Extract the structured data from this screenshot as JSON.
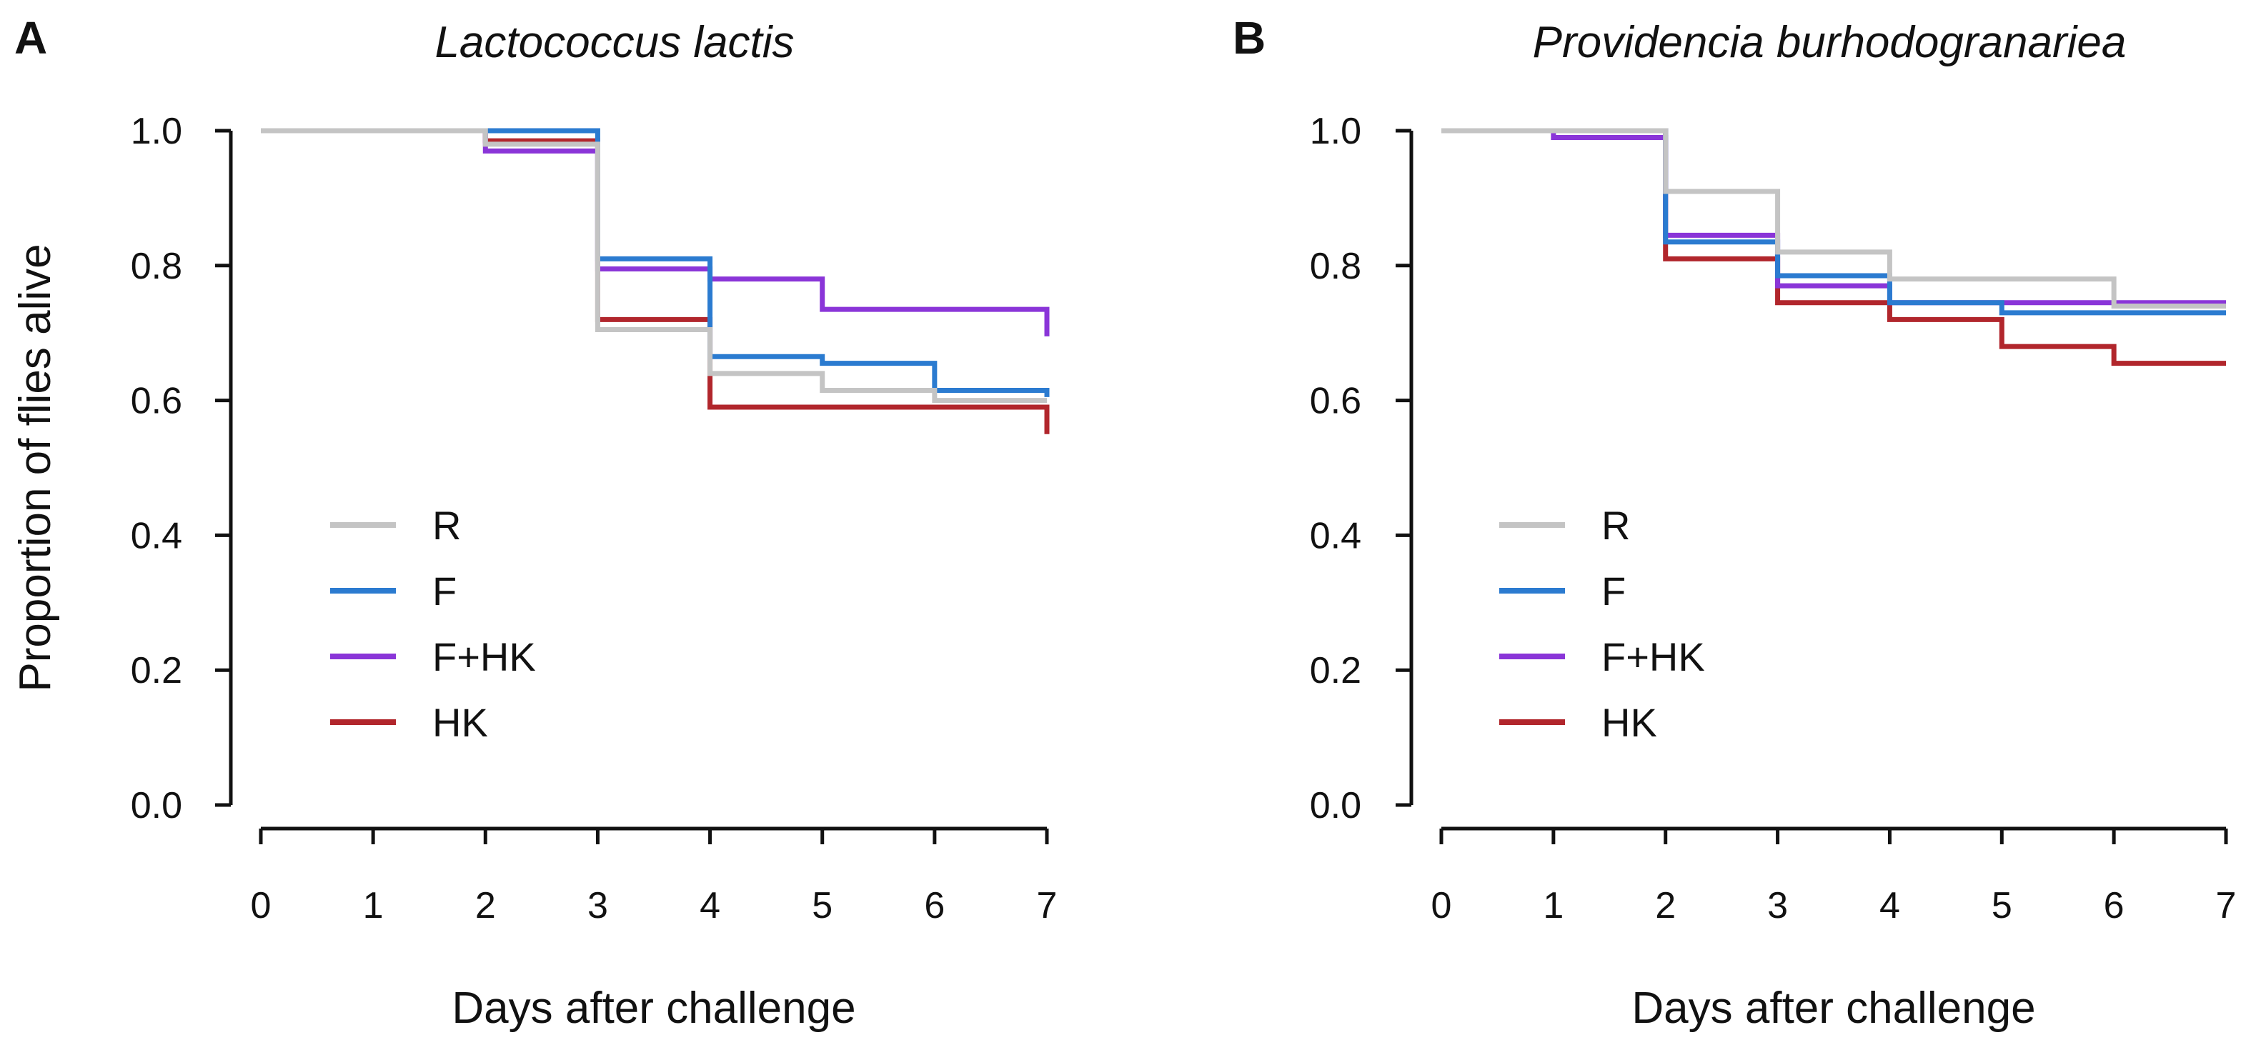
{
  "colors": {
    "R": "#c4c4c4",
    "F": "#2b7bd0",
    "F+HK": "#8a35d8",
    "HK": "#b1262c"
  },
  "chart_data": [
    {
      "type": "line",
      "step": true,
      "panel_letter": "A",
      "title": "Lactococcus lactis",
      "xlabel": "Days after challenge",
      "ylabel": "Proportion of flies alive",
      "xlim": [
        0,
        7
      ],
      "ylim": [
        0,
        1
      ],
      "xticks": [
        "0",
        "1",
        "2",
        "3",
        "4",
        "5",
        "6",
        "7"
      ],
      "yticks": [
        "0.0",
        "0.2",
        "0.4",
        "0.6",
        "0.8",
        "1.0"
      ],
      "legend_position": "bottom-left",
      "series": [
        {
          "name": "R",
          "x": [
            0,
            2,
            3,
            4,
            5,
            6,
            7
          ],
          "y": [
            1.0,
            0.98,
            0.705,
            0.64,
            0.615,
            0.6,
            0.6
          ]
        },
        {
          "name": "F",
          "x": [
            0,
            2,
            3,
            4,
            5,
            6,
            7
          ],
          "y": [
            1.0,
            1.0,
            0.81,
            0.665,
            0.655,
            0.615,
            0.605
          ]
        },
        {
          "name": "F+HK",
          "x": [
            0,
            2,
            3,
            4,
            5,
            6,
            7
          ],
          "y": [
            1.0,
            0.97,
            0.795,
            0.78,
            0.735,
            0.735,
            0.695
          ]
        },
        {
          "name": "HK",
          "x": [
            0,
            2,
            3,
            4,
            5,
            6,
            7
          ],
          "y": [
            1.0,
            0.985,
            0.72,
            0.59,
            0.59,
            0.59,
            0.55
          ]
        }
      ]
    },
    {
      "type": "line",
      "step": true,
      "panel_letter": "B",
      "title": "Providencia burhodogranariea",
      "xlabel": "Days after challenge",
      "ylabel": "",
      "xlim": [
        0,
        7
      ],
      "ylim": [
        0,
        1
      ],
      "xticks": [
        "0",
        "1",
        "2",
        "3",
        "4",
        "5",
        "6",
        "7"
      ],
      "yticks": [
        "0.0",
        "0.2",
        "0.4",
        "0.6",
        "0.8",
        "1.0"
      ],
      "legend_position": "bottom-left",
      "series": [
        {
          "name": "R",
          "x": [
            0,
            1,
            2,
            3,
            4,
            5,
            6,
            7
          ],
          "y": [
            1.0,
            1.0,
            0.91,
            0.82,
            0.78,
            0.78,
            0.74,
            0.74
          ]
        },
        {
          "name": "F",
          "x": [
            0,
            1,
            2,
            3,
            4,
            5,
            6,
            7
          ],
          "y": [
            1.0,
            1.0,
            0.835,
            0.785,
            0.745,
            0.73,
            0.73,
            0.73
          ]
        },
        {
          "name": "F+HK",
          "x": [
            0,
            1,
            2,
            3,
            4,
            5,
            6,
            7
          ],
          "y": [
            1.0,
            0.99,
            0.845,
            0.77,
            0.745,
            0.745,
            0.745,
            0.745
          ]
        },
        {
          "name": "HK",
          "x": [
            0,
            1,
            2,
            3,
            4,
            5,
            6,
            7
          ],
          "y": [
            1.0,
            1.0,
            0.81,
            0.745,
            0.72,
            0.68,
            0.655,
            0.655
          ]
        }
      ]
    }
  ]
}
